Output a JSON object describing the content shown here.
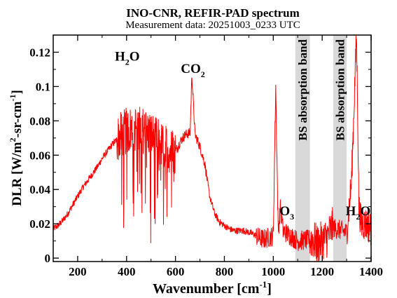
{
  "chart_data": {
    "type": "line",
    "title": "INO-CNR, REFIR-PAD spectrum",
    "subtitle": "Measurement data: 20251003_0233 UTC",
    "xlabel": {
      "main": "Wavenumber [cm",
      "sup": "-1",
      "tail": "]"
    },
    "ylabel": {
      "p1": "DLR [W/m",
      "sup1": "2",
      "p2": "-sr-cm",
      "sup2": "-1",
      "p3": "]"
    },
    "xlim": [
      100,
      1400
    ],
    "ylim": [
      -0.002,
      0.13
    ],
    "xticks": [
      200,
      400,
      600,
      800,
      1000,
      1200,
      1400
    ],
    "xtick_labels": [
      "200",
      "400",
      "600",
      "800",
      "1000",
      "1200",
      "1400"
    ],
    "yticks": [
      0,
      0.02,
      0.04,
      0.06,
      0.08,
      0.1,
      0.12
    ],
    "ytick_labels": [
      "0",
      "0.02",
      "0.04",
      "0.06",
      "0.08",
      "0.1",
      "0.12"
    ],
    "grid": false,
    "series": [
      {
        "color": "#ff0000",
        "x": [
          100,
          120,
          140,
          160,
          180,
          200,
          220,
          240,
          260,
          280,
          300,
          320,
          340,
          360,
          380,
          400,
          420,
          440,
          460,
          480,
          500,
          520,
          540,
          560,
          580,
          600,
          620,
          640,
          660,
          667,
          680,
          700,
          720,
          740,
          760,
          780,
          800,
          820,
          840,
          860,
          880,
          900,
          920,
          940,
          960,
          980,
          1000,
          1010,
          1020,
          1030,
          1040,
          1060,
          1080,
          1100,
          1160,
          1180,
          1200,
          1220,
          1240,
          1300,
          1320,
          1340,
          1345,
          1350,
          1360,
          1380,
          1400
        ],
        "y": [
          0.017,
          0.019,
          0.022,
          0.026,
          0.031,
          0.036,
          0.041,
          0.045,
          0.049,
          0.053,
          0.058,
          0.062,
          0.066,
          0.069,
          0.072,
          0.074,
          0.075,
          0.076,
          0.075,
          0.074,
          0.072,
          0.069,
          0.066,
          0.064,
          0.063,
          0.062,
          0.068,
          0.072,
          0.073,
          0.107,
          0.072,
          0.065,
          0.055,
          0.036,
          0.026,
          0.021,
          0.019,
          0.017,
          0.016,
          0.016,
          0.016,
          0.015,
          0.014,
          0.012,
          0.011,
          0.012,
          0.013,
          0.101,
          0.016,
          0.03,
          0.016,
          0.014,
          0.012,
          0.01,
          0.011,
          0.008,
          0.01,
          0.012,
          0.018,
          0.015,
          0.045,
          0.13,
          0.09,
          0.03,
          0.02,
          0.02,
          0.017
        ]
      }
    ],
    "shaded_regions": [
      {
        "x": [
          1090,
          1150
        ],
        "label": "BS absorption band",
        "color": "#d9d9d9"
      },
      {
        "x": [
          1245,
          1300
        ],
        "label": "BS absorption band",
        "color": "#d9d9d9"
      }
    ],
    "annotations": [
      {
        "base": "H",
        "sub": "2",
        "tail": "O",
        "x": 352,
        "y": 0.115
      },
      {
        "base": "CO",
        "sub": "2",
        "tail": "",
        "x": 622,
        "y": 0.108
      },
      {
        "base": "O",
        "sub": "3",
        "tail": "",
        "x": 1026,
        "y": 0.025
      },
      {
        "base": "H",
        "sub": "2",
        "tail": "O",
        "x": 1296,
        "y": 0.025
      }
    ]
  }
}
